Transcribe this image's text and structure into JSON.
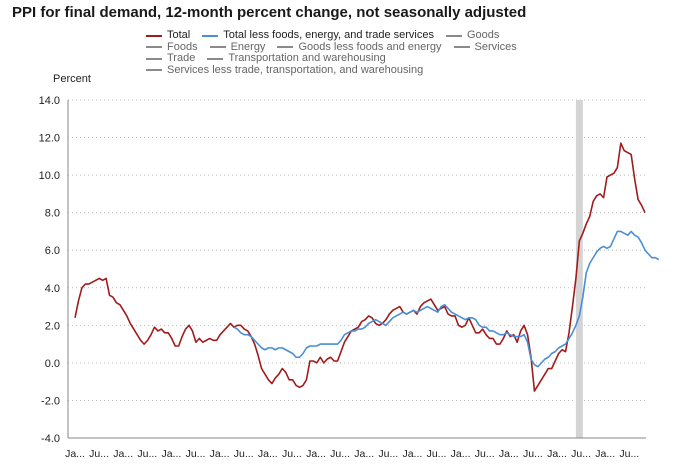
{
  "chart_data": {
    "type": "line",
    "title": "PPI for final demand, 12-month percent change, not seasonally adjusted",
    "ylabel": "Percent",
    "xlabel": "",
    "ylim": [
      -4.0,
      14.0
    ],
    "yticks": [
      "14.0",
      "12.0",
      "10.0",
      "8.0",
      "6.0",
      "4.0",
      "2.0",
      "0.0",
      "-2.0",
      "-4.0"
    ],
    "ytick_values": [
      14,
      12,
      10,
      8,
      6,
      4,
      2,
      0,
      -2,
      -4
    ],
    "xtick_labels": [
      "Ja...",
      "Ju...",
      "Ja...",
      "Ju...",
      "Ja...",
      "Ju...",
      "Ja...",
      "Ju...",
      "Ja...",
      "Ju...",
      "Ja...",
      "Ju...",
      "Ja...",
      "Ju...",
      "Ja...",
      "Ju...",
      "Ja...",
      "Ju...",
      "Ja...",
      "Ju...",
      "Ja...",
      "Ju...",
      "Ja...",
      "Ju..."
    ],
    "recession_shading": {
      "start_index": 145,
      "end_index": 147
    },
    "grid": true,
    "legend": [
      [
        "Total",
        "Total less foods, energy, and trade services",
        "Goods"
      ],
      [
        "Foods",
        "Energy",
        "Goods less foods and energy",
        "Services"
      ],
      [
        "Trade",
        "Transportation and warehousing"
      ],
      [
        "Services less trade, transportation, and warehousing"
      ]
    ],
    "series": [
      {
        "name": "Total",
        "color": "#a01c1c",
        "values": [
          2.4,
          3.3,
          4.0,
          4.2,
          4.2,
          4.3,
          4.4,
          4.5,
          4.4,
          4.5,
          3.6,
          3.5,
          3.2,
          3.1,
          2.8,
          2.5,
          2.1,
          1.8,
          1.5,
          1.2,
          1.0,
          1.2,
          1.5,
          1.9,
          1.7,
          1.8,
          1.6,
          1.6,
          1.3,
          0.9,
          0.9,
          1.4,
          1.8,
          2.0,
          1.7,
          1.1,
          1.3,
          1.1,
          1.2,
          1.3,
          1.2,
          1.2,
          1.5,
          1.7,
          1.9,
          2.1,
          1.9,
          2.0,
          2.0,
          1.8,
          1.7,
          1.4,
          1.0,
          0.4,
          -0.3,
          -0.6,
          -0.9,
          -1.1,
          -0.8,
          -0.6,
          -0.3,
          -0.5,
          -0.9,
          -0.9,
          -1.2,
          -1.3,
          -1.2,
          -0.9,
          0.1,
          0.1,
          0.0,
          0.3,
          0.0,
          0.2,
          0.3,
          0.1,
          0.1,
          0.6,
          1.1,
          1.4,
          1.7,
          1.8,
          1.9,
          2.2,
          2.3,
          2.5,
          2.4,
          2.1,
          2.0,
          2.1,
          2.3,
          2.6,
          2.8,
          2.9,
          3.0,
          2.7,
          2.6,
          2.7,
          2.8,
          2.6,
          3.0,
          3.2,
          3.3,
          3.4,
          3.1,
          2.8,
          2.9,
          3.0,
          2.6,
          2.5,
          2.5,
          2.0,
          1.9,
          2.0,
          2.4,
          2.0,
          1.6,
          1.6,
          1.8,
          1.5,
          1.3,
          1.3,
          1.0,
          1.0,
          1.3,
          1.7,
          1.4,
          1.5,
          1.1,
          1.7,
          2.0,
          1.5,
          0.3,
          -1.5,
          -1.2,
          -0.9,
          -0.6,
          -0.3,
          -0.3,
          0.1,
          0.5,
          0.7,
          0.6,
          1.6,
          3.0,
          4.5,
          6.5,
          6.9,
          7.4,
          7.8,
          8.6,
          8.9,
          9.0,
          8.8,
          9.9,
          10.0,
          10.1,
          10.4,
          11.7,
          11.3,
          11.2,
          11.1,
          9.8,
          8.7,
          8.4,
          8.0
        ]
      },
      {
        "name": "Total less foods, energy, and trade services",
        "color": "#4a8fd6",
        "values": [
          null,
          null,
          null,
          null,
          null,
          null,
          null,
          null,
          null,
          null,
          null,
          null,
          null,
          null,
          null,
          null,
          null,
          null,
          null,
          null,
          null,
          null,
          null,
          null,
          null,
          null,
          null,
          null,
          null,
          null,
          null,
          null,
          null,
          null,
          null,
          null,
          null,
          null,
          null,
          null,
          null,
          null,
          null,
          null,
          null,
          null,
          1.9,
          1.8,
          1.6,
          1.5,
          1.5,
          1.4,
          1.2,
          1.0,
          0.8,
          0.7,
          0.8,
          0.8,
          0.7,
          0.8,
          0.8,
          0.7,
          0.6,
          0.5,
          0.3,
          0.3,
          0.5,
          0.8,
          0.9,
          0.9,
          0.9,
          1.0,
          1.0,
          1.0,
          1.0,
          1.0,
          1.0,
          1.2,
          1.5,
          1.6,
          1.7,
          1.7,
          1.8,
          1.8,
          1.9,
          2.1,
          2.2,
          2.3,
          2.2,
          2.1,
          2.0,
          2.2,
          2.4,
          2.5,
          2.6,
          2.7,
          2.6,
          2.7,
          2.8,
          2.7,
          2.8,
          2.9,
          3.0,
          2.9,
          2.8,
          2.7,
          3.0,
          3.1,
          2.9,
          2.7,
          2.6,
          2.5,
          2.4,
          2.3,
          2.4,
          2.4,
          2.3,
          2.0,
          1.9,
          1.9,
          1.7,
          1.7,
          1.6,
          1.5,
          1.5,
          1.6,
          1.5,
          1.4,
          1.4,
          1.4,
          1.5,
          1.1,
          0.2,
          -0.1,
          -0.2,
          0.0,
          0.2,
          0.3,
          0.5,
          0.6,
          0.8,
          0.9,
          1.0,
          1.3,
          1.6,
          2.0,
          2.5,
          3.5,
          4.8,
          5.3,
          5.6,
          5.9,
          6.1,
          6.2,
          6.1,
          6.2,
          6.6,
          7.0,
          7.0,
          6.9,
          6.8,
          7.0,
          6.8,
          6.7,
          6.4,
          6.0,
          5.8,
          5.6,
          5.6,
          5.5
        ]
      }
    ]
  }
}
